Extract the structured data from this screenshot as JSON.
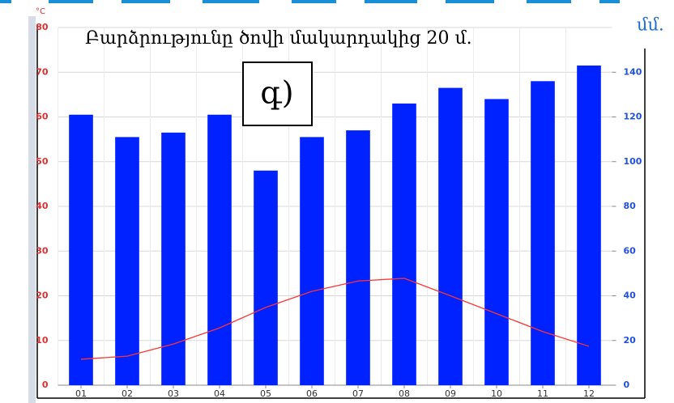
{
  "chart_data": {
    "type": "bar",
    "title": "Բարձրությունը ծովի մակարդակից 20 մ.",
    "annotation": "գ)",
    "y_label": "°C",
    "y2_label": "մմ.",
    "categories": [
      "01",
      "02",
      "03",
      "04",
      "05",
      "06",
      "07",
      "08",
      "09",
      "10",
      "11",
      "12"
    ],
    "series": [
      {
        "type": "bar",
        "axis": "y2",
        "color": "#0022ff",
        "values": [
          121,
          111,
          113,
          121,
          96,
          111,
          114,
          126,
          133,
          128,
          136,
          143
        ]
      },
      {
        "type": "line",
        "color": "#ff3333",
        "values": [
          5.8,
          6.5,
          9.2,
          12.8,
          17.4,
          21,
          23.3,
          23.9,
          20,
          16,
          12,
          8.7
        ]
      }
    ],
    "ylim": [
      0,
      80
    ],
    "yticks": [
      0,
      10,
      20,
      30,
      40,
      50,
      60,
      70,
      80
    ],
    "y2lim": [
      0,
      160
    ],
    "y2ticks": [
      0,
      20,
      40,
      60,
      80,
      100,
      120,
      140
    ],
    "grid": true
  }
}
